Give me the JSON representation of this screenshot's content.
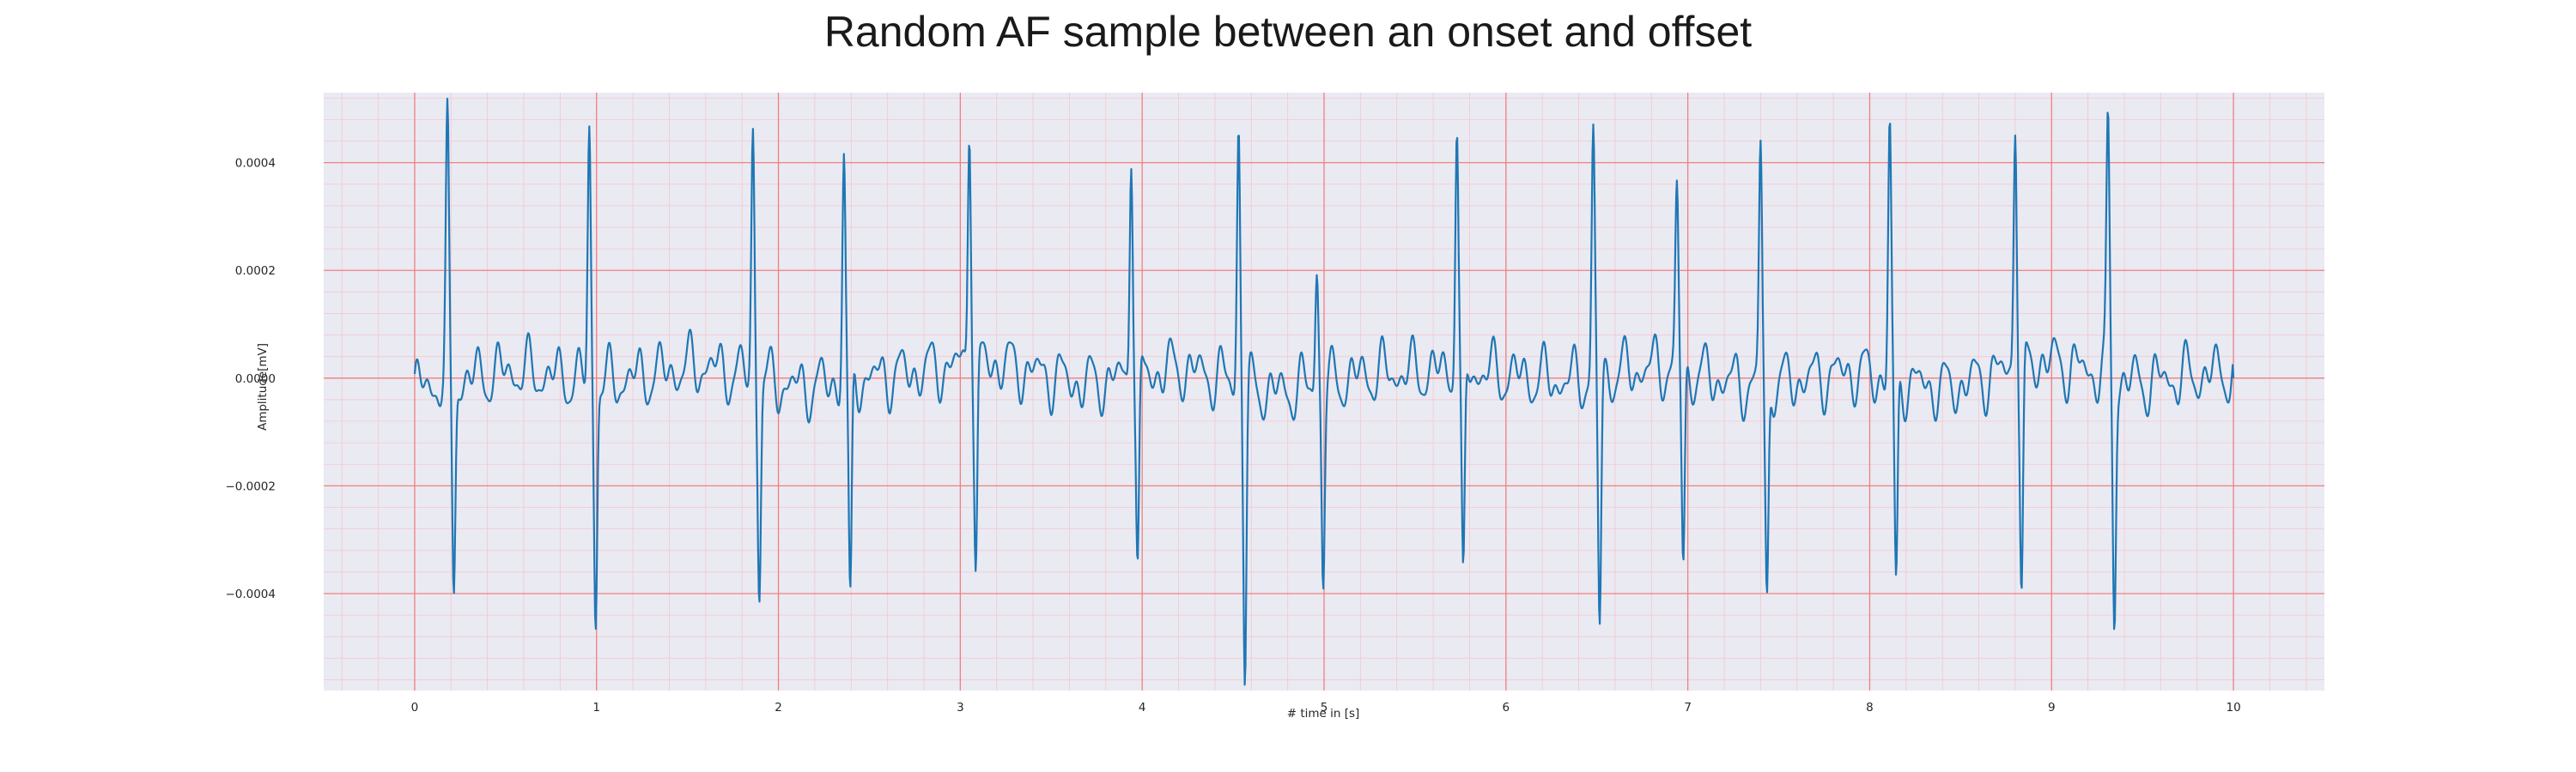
{
  "chart_data": {
    "type": "line",
    "title": "Random AF sample between an onset and offset",
    "xlabel": "# time in [s]",
    "ylabel": "Amplitude[mV]",
    "xlim": [
      -0.5,
      10.5
    ],
    "ylim": [
      -0.00058,
      0.00053
    ],
    "x_ticks": [
      0,
      1,
      2,
      3,
      4,
      5,
      6,
      7,
      8,
      9,
      10
    ],
    "y_ticks": [
      -0.0004,
      -0.0002,
      0.0,
      0.0002,
      0.0004
    ],
    "y_tick_labels": [
      "−0.0004",
      "−0.0002",
      "0.0000",
      "0.0002",
      "0.0004"
    ],
    "grid": {
      "major": true,
      "minor": true
    },
    "colors": {
      "line": "#1f77b4",
      "background": "#eaeaf2",
      "major_grid": "#f08080",
      "minor_grid": "#f4c7cd"
    },
    "duration_s": 10,
    "baseline_samples": [
      -2e-05,
      1.4e-05,
      -8e-06,
      2.4e-05,
      -1.8e-05,
      6e-06,
      3.1e-05,
      -1.2e-05,
      1.9e-05,
      -2.7e-05,
      8e-06,
      1.5e-05,
      -6e-06,
      2.2e-05,
      -1.6e-05,
      1.1e-05,
      -2.1e-05,
      3.4e-05,
      -9e-06,
      1.3e-05
    ],
    "beats": [
      {
        "t": 0.18,
        "peak": 0.000455,
        "trough": -0.00038
      },
      {
        "t": 0.96,
        "peak": 0.00046,
        "trough": -0.00043
      },
      {
        "t": 1.86,
        "peak": 0.000455,
        "trough": -0.00038
      },
      {
        "t": 2.36,
        "peak": 0.00042,
        "trough": -0.00044
      },
      {
        "t": 3.05,
        "peak": 0.00048,
        "trough": -0.0004
      },
      {
        "t": 3.94,
        "peak": 0.00045,
        "trough": -0.00038
      },
      {
        "t": 4.53,
        "peak": 0.000475,
        "trough": -0.00053
      },
      {
        "t": 4.96,
        "peak": 0.000225,
        "trough": -0.00036
      },
      {
        "t": 5.73,
        "peak": 0.00047,
        "trough": -0.00043
      },
      {
        "t": 6.48,
        "peak": 0.000435,
        "trough": -0.00046
      },
      {
        "t": 6.94,
        "peak": 0.00032,
        "trough": -0.00036
      },
      {
        "t": 7.4,
        "peak": 0.00045,
        "trough": -0.00041
      },
      {
        "t": 8.11,
        "peak": 0.000465,
        "trough": -0.0004
      },
      {
        "t": 8.8,
        "peak": 0.000485,
        "trough": -0.00045
      },
      {
        "t": 9.31,
        "peak": 0.00046,
        "trough": -0.00045
      }
    ],
    "end_value": 0.0
  }
}
